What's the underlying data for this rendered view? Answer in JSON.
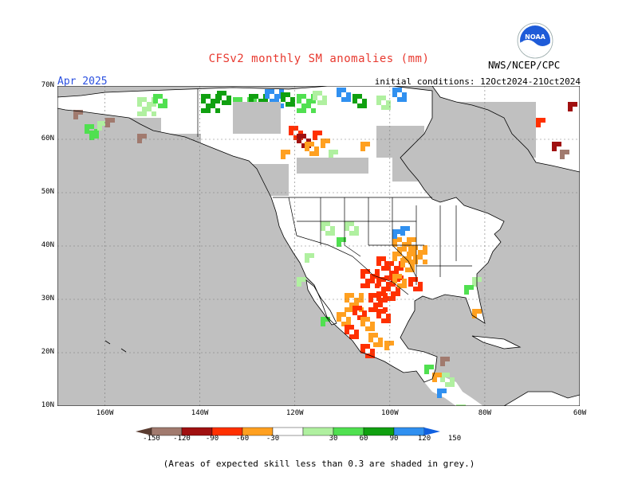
{
  "header": {
    "title": "CFSv2 monthly SM anomalies (mm)",
    "month": "Apr 2025",
    "initial_conditions": "initial conditions: 12Oct2024-21Oct2024",
    "agency": "NWS/NCEP/CPC",
    "logo_text": "NOAA"
  },
  "map": {
    "lon_range": [
      -170,
      -60
    ],
    "lat_range": [
      10,
      70
    ],
    "lat_labels": [
      "70N",
      "60N",
      "50N",
      "40N",
      "30N",
      "20N",
      "10N"
    ],
    "lon_labels": [
      "160W",
      "140W",
      "120W",
      "100W",
      "80W",
      "60W"
    ],
    "colors": {
      "ocean": "#c0c0c0",
      "land": "#ffffff",
      "low_skill": "#c0c0c0",
      "outline": "#000000",
      "grid": "#7a7a7a"
    }
  },
  "colorbar": {
    "labels": [
      "-150",
      "-120",
      "-90",
      "-60",
      "-30",
      "30",
      "60",
      "90",
      "120",
      "150"
    ],
    "colors": [
      "#5a3c30",
      "#a17a6e",
      "#a01010",
      "#ff3000",
      "#ffa020",
      "#ffffff",
      "#b0f0a0",
      "#50e050",
      "#10a010",
      "#3090f0",
      "#1060e0"
    ]
  },
  "footnote": "(Areas of expected skill less than 0.3 are shaded in grey.)"
}
